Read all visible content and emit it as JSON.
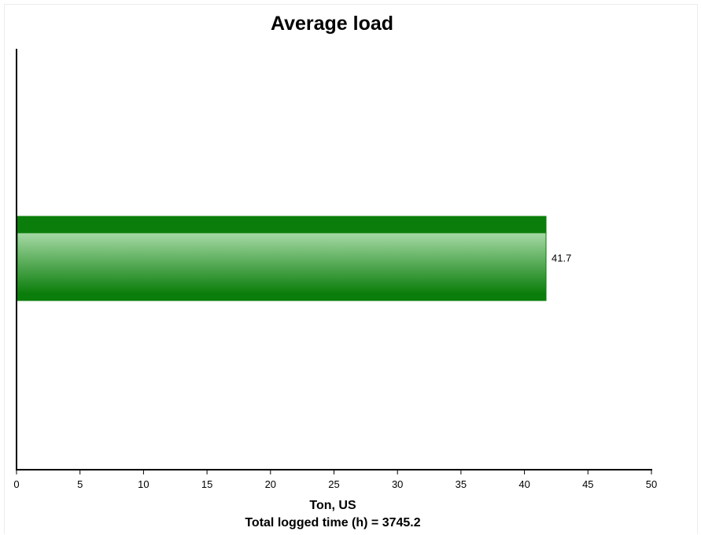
{
  "chart_data": {
    "type": "bar",
    "orientation": "horizontal",
    "title": "Average load",
    "categories": [
      ""
    ],
    "values": [
      41.7
    ],
    "value_labels": [
      "41.7"
    ],
    "xlabel": "Ton, US",
    "footnote": "Total logged time (h) = 3745.2",
    "xlim": [
      0,
      50
    ],
    "xticks": [
      0,
      5,
      10,
      15,
      20,
      25,
      30,
      35,
      40,
      45,
      50
    ],
    "grid": false,
    "legend": "none",
    "colors": {
      "bar_dark": "#0a7d0a",
      "bar_light": "#a4d8a4",
      "axis": "#000000"
    }
  }
}
